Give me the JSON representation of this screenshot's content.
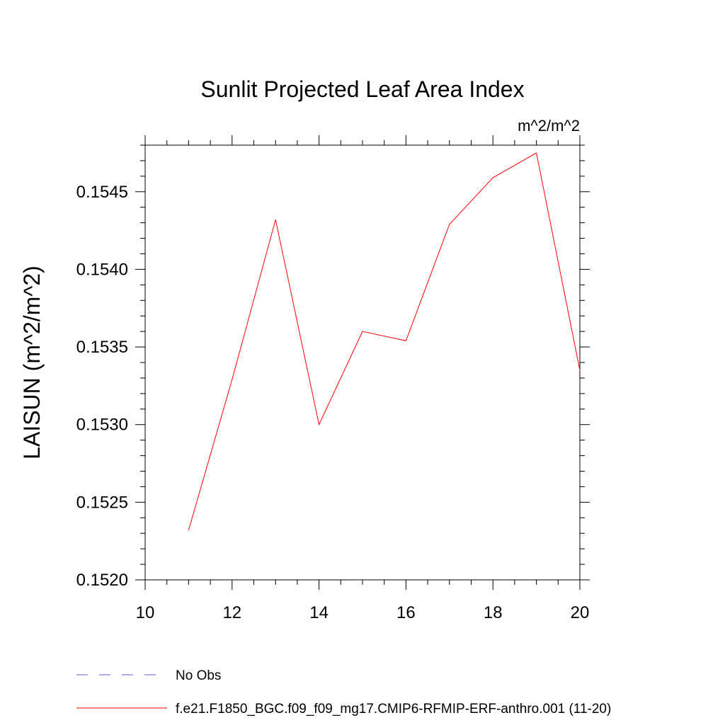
{
  "chart_data": {
    "type": "line",
    "title": "Sunlit Projected Leaf Area Index",
    "units_label": "m^2/m^2",
    "xlabel": "",
    "ylabel": "LAISUN  (m^2/m^2)",
    "xlim": [
      10,
      20
    ],
    "ylim": [
      0.152,
      0.1548
    ],
    "x_ticks": [
      10,
      12,
      14,
      16,
      18,
      20
    ],
    "x_tick_labels": [
      "10",
      "12",
      "14",
      "16",
      "18",
      "20"
    ],
    "y_ticks": [
      0.152,
      0.1525,
      0.153,
      0.1535,
      0.154,
      0.1545
    ],
    "y_tick_labels": [
      "0.1520",
      "0.1525",
      "0.1530",
      "0.1535",
      "0.1540",
      "0.1545"
    ],
    "grid": false,
    "series": [
      {
        "name": "f.e21.F1850_BGC.f09_f09_mg17.CMIP6-RFMIP-ERF-anthro.001 (11-20)",
        "color": "#ff0000",
        "dash": "solid",
        "x": [
          11,
          12,
          13,
          14,
          15,
          16,
          17,
          18,
          19,
          20
        ],
        "y": [
          0.15232,
          0.15329,
          0.15432,
          0.153,
          0.1536,
          0.15354,
          0.15429,
          0.15459,
          0.15475,
          0.15335
        ]
      }
    ],
    "legend": [
      {
        "label": "No Obs",
        "color": "#6a5acd",
        "dash": "dashed"
      },
      {
        "label": "f.e21.F1850_BGC.f09_f09_mg17.CMIP6-RFMIP-ERF-anthro.001 (11-20)",
        "color": "#ff0000",
        "dash": "solid"
      }
    ]
  }
}
